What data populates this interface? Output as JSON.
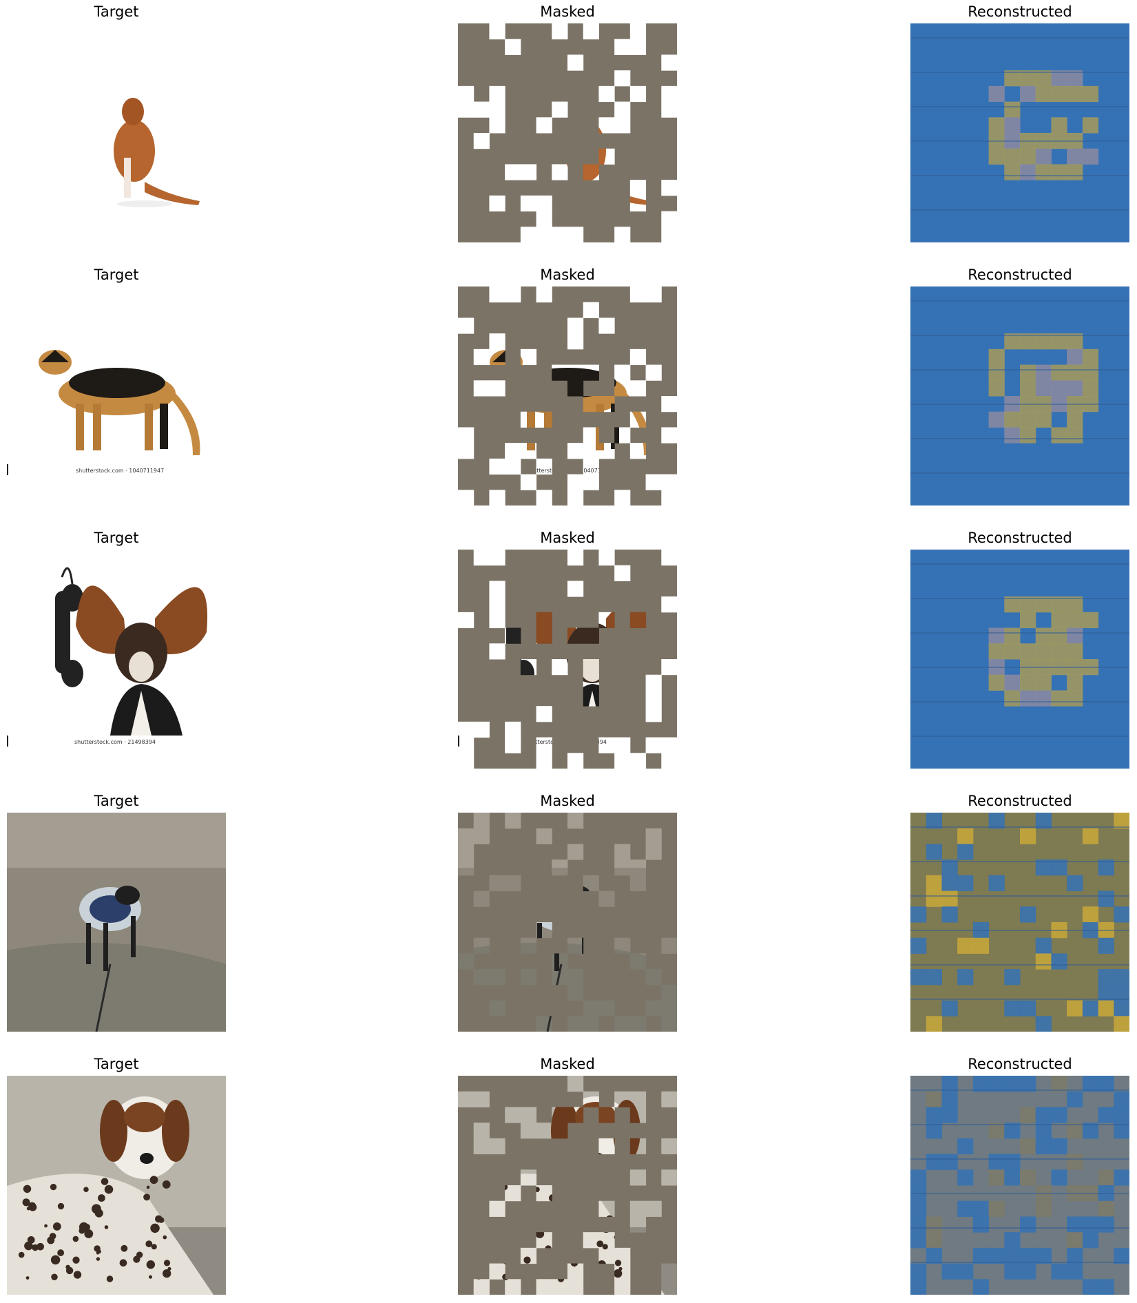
{
  "columns": [
    "Target",
    "Masked",
    "Reconstructed"
  ],
  "rows": [
    {
      "subject": "boxer-dog",
      "watermark": ""
    },
    {
      "subject": "german-shepherd",
      "watermark": "shutterstock.com · 1040711947"
    },
    {
      "subject": "basset-hound-with-phone",
      "watermark": "shutterstock.com · 21498394"
    },
    {
      "subject": "dog-on-beach",
      "watermark": ""
    },
    {
      "subject": "spotted-hound",
      "watermark": ""
    }
  ],
  "colors": {
    "mask_fill": "#7b7366",
    "recon_blue": "#3572b5",
    "recon_olive": "#7e7a52",
    "recon_gold": "#c8a83a",
    "recon_gray": "#6f7a82",
    "background": "#ffffff"
  }
}
